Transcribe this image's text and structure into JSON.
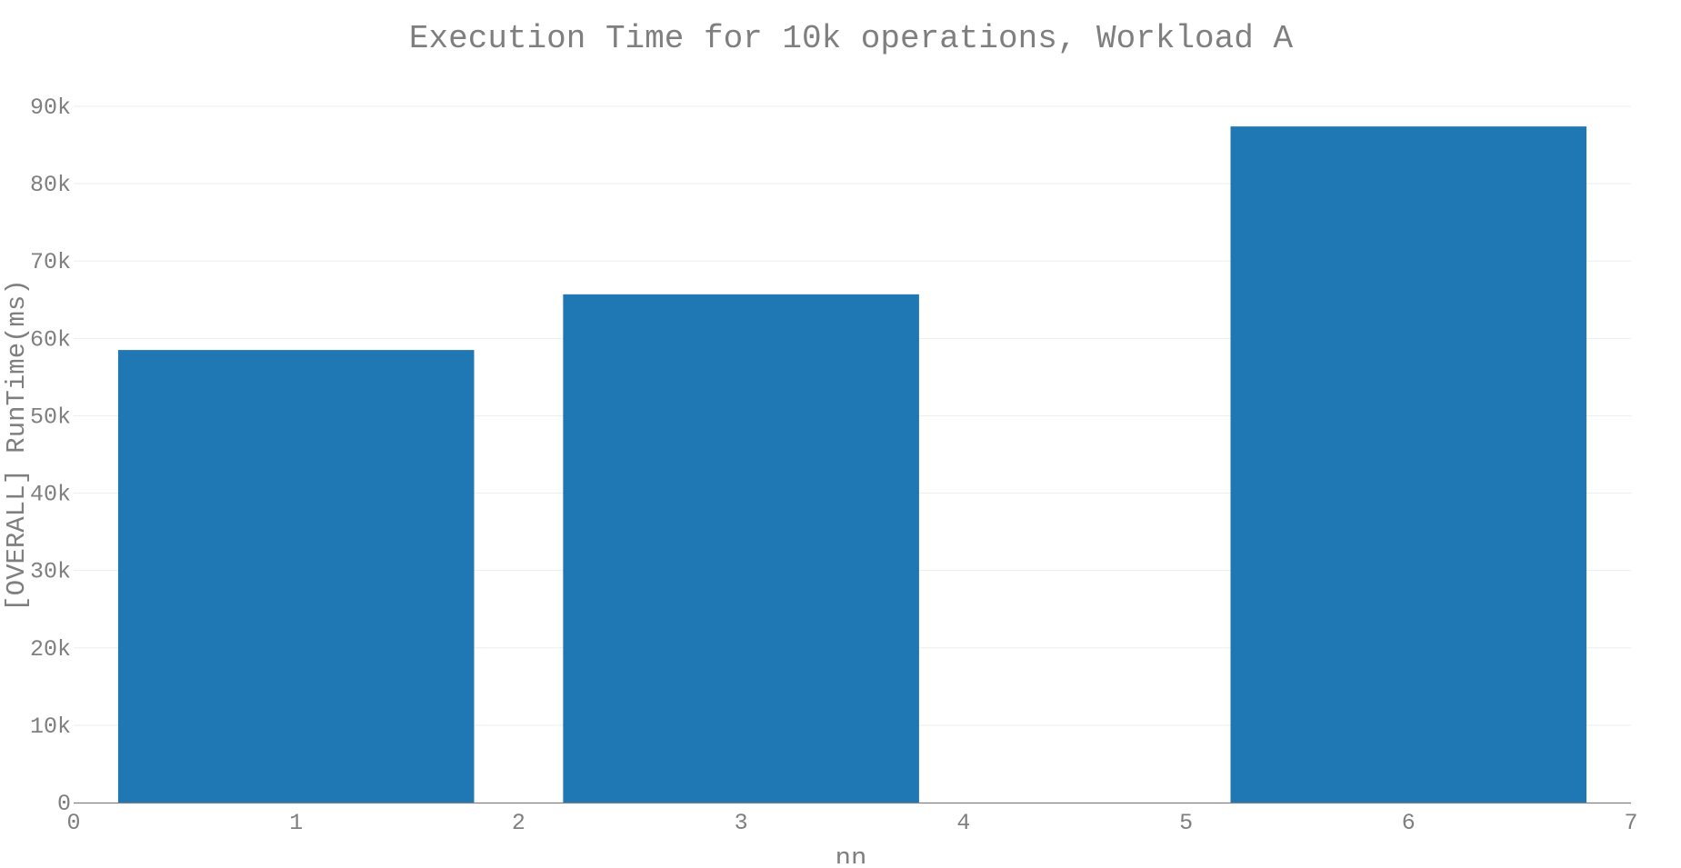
{
  "chart_data": {
    "type": "bar",
    "title": "Execution Time for 10k operations, Workload A",
    "xlabel": "nn",
    "ylabel": "[OVERALL] RunTime(ms)",
    "x": [
      1,
      3,
      6
    ],
    "values": [
      58500,
      65700,
      87400
    ],
    "bar_color": "#1f77b4",
    "xlim": [
      0,
      7
    ],
    "ylim": [
      0,
      90000
    ],
    "x_ticks": [
      0,
      1,
      2,
      3,
      4,
      5,
      6,
      7
    ],
    "x_tick_labels": [
      "0",
      "1",
      "2",
      "3",
      "4",
      "5",
      "6",
      "7"
    ],
    "y_ticks": [
      0,
      10000,
      20000,
      30000,
      40000,
      50000,
      60000,
      70000,
      80000,
      90000
    ],
    "y_tick_labels": [
      "0",
      "10k",
      "20k",
      "30k",
      "40k",
      "50k",
      "60k",
      "70k",
      "80k",
      "90k"
    ],
    "grid": true,
    "legend": false
  }
}
